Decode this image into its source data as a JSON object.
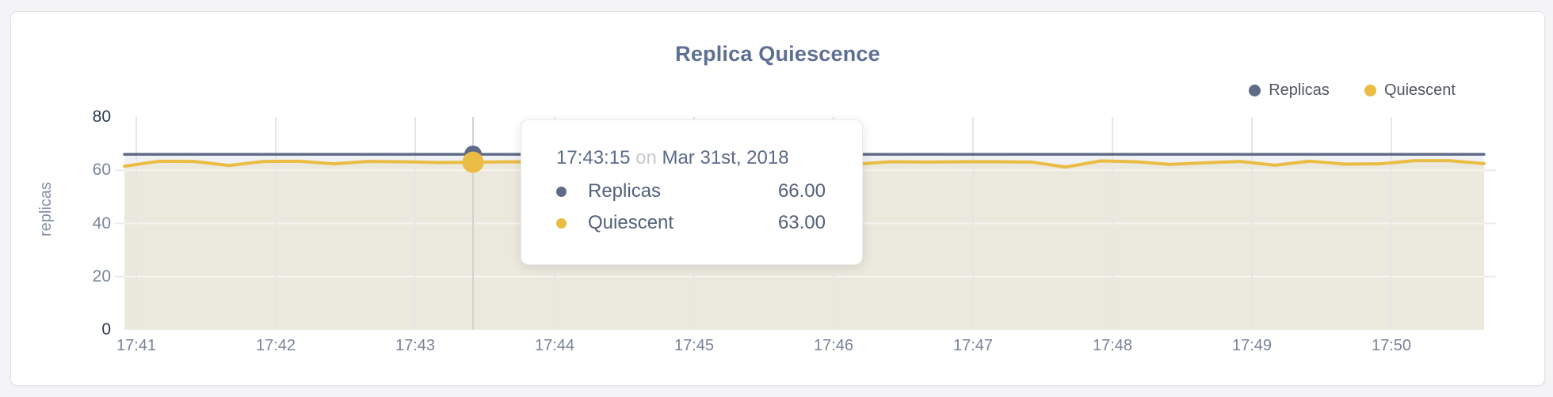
{
  "colors": {
    "replicas": "#5f6b87",
    "quiescent": "#eabc43",
    "replicas_fill": "#eff1f5",
    "quiescent_fill": "#ebe8dd",
    "gridline": "#ebebeb",
    "vertical_gridline": "#e6e6e6",
    "crosshair": "#d2d2d2",
    "title_text": "#5d6f93",
    "axis_text": "#78849a",
    "axis_text_emphasized": "#2b3850"
  },
  "chart": {
    "title": "Replica Quiescence",
    "y_axis_label": "replicas",
    "legend": [
      {
        "label": "Replicas",
        "color": "#5f6b87"
      },
      {
        "label": "Quiescent",
        "color": "#eabc43"
      }
    ],
    "y_ticks": [
      {
        "label": "80",
        "value": 80,
        "emphasized": true
      },
      {
        "label": "60",
        "value": 60,
        "emphasized": false
      },
      {
        "label": "40",
        "value": 40,
        "emphasized": false
      },
      {
        "label": "20",
        "value": 20,
        "emphasized": false
      },
      {
        "label": "0",
        "value": 0,
        "emphasized": true
      }
    ],
    "x_ticks": [
      "17:41",
      "17:42",
      "17:43",
      "17:44",
      "17:45",
      "17:46",
      "17:47",
      "17:48",
      "17:49",
      "17:50"
    ]
  },
  "tooltip": {
    "time": "17:43:15",
    "connector": "on",
    "date": "Mar 31st, 2018",
    "rows": [
      {
        "label": "Replicas",
        "value": "66.00",
        "color": "#5f6b87"
      },
      {
        "label": "Quiescent",
        "value": "63.00",
        "color": "#eabc43"
      }
    ]
  },
  "chart_data": {
    "type": "area",
    "title": "Replica Quiescence",
    "xlabel": "",
    "ylabel": "replicas",
    "ylim": [
      0,
      80
    ],
    "y_tick_values": [
      0,
      20,
      40,
      60,
      80
    ],
    "x_tick_labels": [
      "17:41",
      "17:42",
      "17:43",
      "17:44",
      "17:45",
      "17:46",
      "17:47",
      "17:48",
      "17:49",
      "17:50"
    ],
    "grid": true,
    "legend_position": "top-right",
    "x": [
      "17:40:45",
      "17:41:00",
      "17:41:15",
      "17:41:30",
      "17:41:45",
      "17:42:00",
      "17:42:15",
      "17:42:30",
      "17:42:45",
      "17:43:00",
      "17:43:15",
      "17:43:30",
      "17:43:45",
      "17:44:00",
      "17:44:15",
      "17:44:30",
      "17:44:45",
      "17:45:00",
      "17:45:15",
      "17:45:30",
      "17:45:45",
      "17:46:00",
      "17:46:15",
      "17:46:30",
      "17:46:45",
      "17:47:00",
      "17:47:15",
      "17:47:30",
      "17:47:45",
      "17:48:00",
      "17:48:15",
      "17:48:30",
      "17:48:45",
      "17:49:00",
      "17:49:15",
      "17:49:30",
      "17:49:45",
      "17:50:00",
      "17:50:15",
      "17:50:30"
    ],
    "series": [
      {
        "name": "Replicas",
        "color": "#5f6b87",
        "values": [
          66,
          66,
          66,
          66,
          66,
          66,
          66,
          66,
          66,
          66,
          66,
          66,
          66,
          66,
          66,
          66,
          66,
          66,
          66,
          66,
          66,
          66,
          66,
          66,
          66,
          66,
          66,
          66,
          66,
          66,
          66,
          66,
          66,
          66,
          66,
          66,
          66,
          66,
          66,
          66
        ]
      },
      {
        "name": "Quiescent",
        "color": "#eabc43",
        "values": [
          61.5,
          63.4,
          63.3,
          61.8,
          63.3,
          63.4,
          62.4,
          63.3,
          63.2,
          62.9,
          63.0,
          63.2,
          63.1,
          63.2,
          63.3,
          63.1,
          63.2,
          63.3,
          63.2,
          63.4,
          64.8,
          62.3,
          63.2,
          63.1,
          63.2,
          63.2,
          63.1,
          61.2,
          63.5,
          63.2,
          62.2,
          62.8,
          63.3,
          61.9,
          63.4,
          62.3,
          62.4,
          63.6,
          63.6,
          62.5
        ]
      }
    ],
    "hover": {
      "index": 10,
      "time": "17:43:15",
      "date": "Mar 31st, 2018",
      "values": {
        "Replicas": 66.0,
        "Quiescent": 63.0
      }
    }
  }
}
